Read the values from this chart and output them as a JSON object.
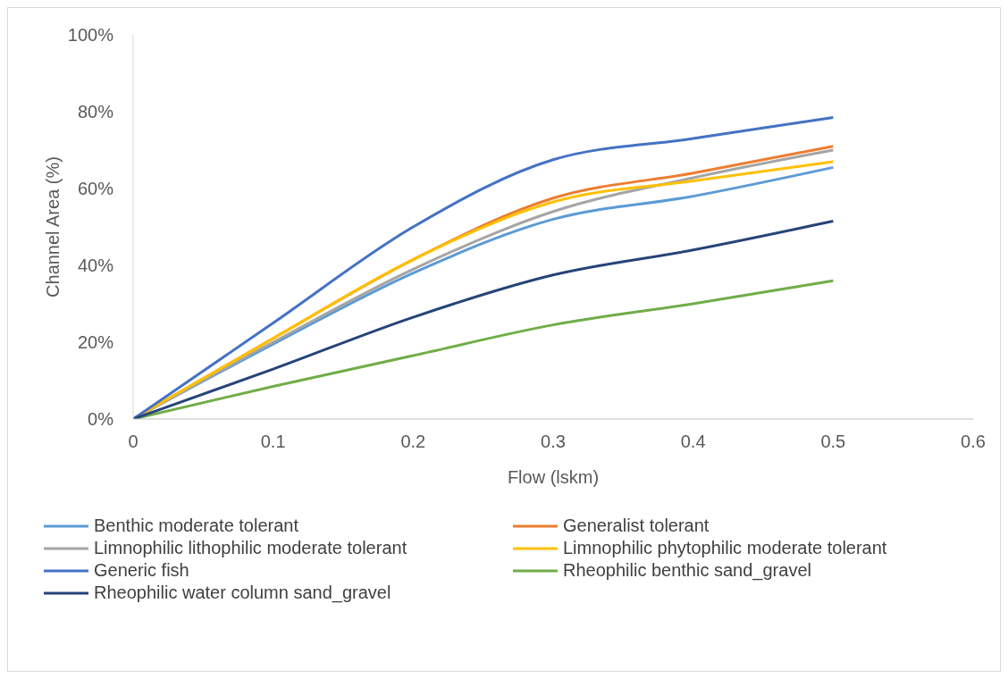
{
  "chart_data": {
    "type": "line",
    "xlabel": "Flow (lskm)",
    "ylabel": "Channel Area (%)",
    "x": [
      0,
      0.1,
      0.2,
      0.3,
      0.4,
      0.5
    ],
    "series": [
      {
        "name": "Benthic moderate tolerant",
        "color": "#5b9bd5",
        "values": [
          0,
          19.5,
          38,
          52,
          58,
          65.5
        ]
      },
      {
        "name": "Generalist tolerant",
        "color": "#ed7d31",
        "values": [
          0,
          21,
          41.5,
          57.5,
          64,
          71
        ]
      },
      {
        "name": "Limnophilic lithophilic moderate tolerant",
        "color": "#a5a5a5",
        "values": [
          0,
          20,
          39,
          54,
          62.8,
          70
        ]
      },
      {
        "name": "Limnophilic phytophilic moderate tolerant",
        "color": "#ffc000",
        "values": [
          0,
          21,
          41.5,
          56.5,
          62,
          67
        ]
      },
      {
        "name": "Generic fish",
        "color": "#4472c4",
        "values": [
          0,
          25,
          50,
          67.5,
          73,
          78.5
        ]
      },
      {
        "name": "Rheophilic benthic sand_gravel",
        "color": "#70ad47",
        "values": [
          0,
          8.5,
          16.5,
          24.5,
          30,
          36
        ]
      },
      {
        "name": "Rheophilic water column sand_gravel",
        "color": "#264478",
        "values": [
          0,
          13,
          26.5,
          37.5,
          44,
          51.5
        ]
      }
    ],
    "xlim": [
      0,
      0.6
    ],
    "xticks": [
      0,
      0.1,
      0.2,
      0.3,
      0.4,
      0.5,
      0.6
    ],
    "ylim": [
      0,
      100
    ],
    "yticks": [
      {
        "value": 0,
        "label": "0%"
      },
      {
        "value": 20,
        "label": "20%"
      },
      {
        "value": 40,
        "label": "40%"
      },
      {
        "value": 60,
        "label": "60%"
      },
      {
        "value": 80,
        "label": "80%"
      },
      {
        "value": 100,
        "label": "100%"
      }
    ],
    "grid": false,
    "legend": "bottom",
    "marker": "none",
    "line_style": "solid"
  }
}
